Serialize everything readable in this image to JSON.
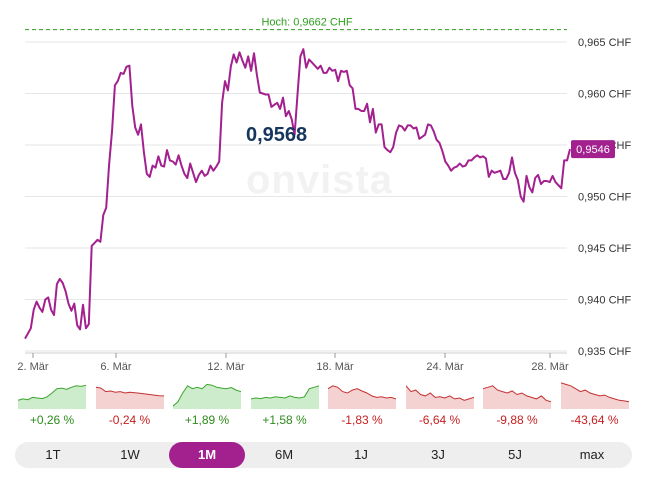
{
  "chart_data": {
    "type": "line",
    "x_tick_labels": [
      "2. Mär",
      "6. Mär",
      "12. Mär",
      "18. Mär",
      "24. Mär",
      "28. Mär"
    ],
    "y_tick_labels": [
      "0,965 CHF",
      "0,960 CHF",
      "0,955 CHF",
      "0,950 CHF",
      "0,945 CHF",
      "0,940 CHF",
      "0,935 CHF"
    ],
    "ylim": [
      0.935,
      0.966
    ],
    "high_label": "Hoch: 0,9662 CHF",
    "high_value": 0.9662,
    "current_label": "0,9546",
    "current_value": 0.9546,
    "hover_value": "0,9568",
    "watermark": "onvista",
    "series": [
      {
        "values": [
          0.9362,
          0.9367,
          0.9372,
          0.939,
          0.9398,
          0.9392,
          0.9388,
          0.94,
          0.9402,
          0.939,
          0.9385,
          0.9415,
          0.942,
          0.9416,
          0.9408,
          0.9396,
          0.9389,
          0.9396,
          0.9375,
          0.9371,
          0.9395,
          0.9372,
          0.9376,
          0.9452,
          0.9455,
          0.9458,
          0.9456,
          0.9482,
          0.9489,
          0.9531,
          0.9563,
          0.9608,
          0.9612,
          0.962,
          0.9619,
          0.9626,
          0.9627,
          0.9588,
          0.9567,
          0.956,
          0.957,
          0.9543,
          0.9522,
          0.9519,
          0.953,
          0.9528,
          0.9539,
          0.953,
          0.9529,
          0.9545,
          0.9535,
          0.9534,
          0.9531,
          0.954,
          0.953,
          0.9522,
          0.9518,
          0.9532,
          0.9523,
          0.9514,
          0.9521,
          0.9525,
          0.952,
          0.9522,
          0.953,
          0.9525,
          0.9529,
          0.9534,
          0.9591,
          0.9612,
          0.9603,
          0.9626,
          0.9638,
          0.963,
          0.964,
          0.9632,
          0.9625,
          0.9636,
          0.9622,
          0.9639,
          0.9618,
          0.9601,
          0.96,
          0.9599,
          0.9599,
          0.9587,
          0.9589,
          0.9591,
          0.9585,
          0.9596,
          0.9578,
          0.9583,
          0.9575,
          0.956,
          0.9599,
          0.9636,
          0.9643,
          0.9625,
          0.9633,
          0.963,
          0.9627,
          0.9624,
          0.9627,
          0.962,
          0.962,
          0.9625,
          0.9622,
          0.9623,
          0.9612,
          0.9622,
          0.9621,
          0.9622,
          0.9608,
          0.9605,
          0.9585,
          0.9585,
          0.9583,
          0.9583,
          0.959,
          0.9572,
          0.9585,
          0.9562,
          0.957,
          0.957,
          0.9548,
          0.9545,
          0.9543,
          0.9548,
          0.9562,
          0.9569,
          0.9568,
          0.9564,
          0.9569,
          0.9569,
          0.9566,
          0.9567,
          0.9556,
          0.9558,
          0.956,
          0.957,
          0.9569,
          0.9563,
          0.9555,
          0.9552,
          0.9544,
          0.9534,
          0.953,
          0.9525,
          0.9528,
          0.9529,
          0.9532,
          0.9529,
          0.953,
          0.9535,
          0.9535,
          0.9538,
          0.954,
          0.9538,
          0.9539,
          0.9537,
          0.9519,
          0.9525,
          0.9523,
          0.9524,
          0.9525,
          0.9517,
          0.9517,
          0.9523,
          0.9538,
          0.9523,
          0.9516,
          0.95,
          0.9495,
          0.952,
          0.9509,
          0.9504,
          0.9518,
          0.9521,
          0.9512,
          0.9515,
          0.9515,
          0.9514,
          0.952,
          0.9514,
          0.9511,
          0.9508,
          0.9535,
          0.9535,
          0.9546
        ]
      }
    ]
  },
  "performance": [
    {
      "label": "+0,26 %",
      "trend": "positive",
      "spark": [
        0.3,
        0.35,
        0.32,
        0.4,
        0.38,
        0.36,
        0.42,
        0.55,
        0.7,
        0.72,
        0.68,
        0.75,
        0.8,
        0.78,
        0.82
      ]
    },
    {
      "label": "-0,24 %",
      "trend": "negative",
      "spark": [
        0.75,
        0.72,
        0.6,
        0.62,
        0.58,
        0.6,
        0.55,
        0.58,
        0.56,
        0.54,
        0.52,
        0.5,
        0.48,
        0.46,
        0.45
      ]
    },
    {
      "label": "+1,89 %",
      "trend": "positive",
      "spark": [
        0.1,
        0.25,
        0.55,
        0.8,
        0.7,
        0.75,
        0.7,
        0.85,
        0.82,
        0.75,
        0.72,
        0.7,
        0.74,
        0.65,
        0.6
      ]
    },
    {
      "label": "+1,58 %",
      "trend": "positive",
      "spark": [
        0.35,
        0.38,
        0.36,
        0.4,
        0.38,
        0.42,
        0.4,
        0.38,
        0.45,
        0.4,
        0.38,
        0.42,
        0.7,
        0.75,
        0.8
      ]
    },
    {
      "label": "-1,83 %",
      "trend": "negative",
      "spark": [
        0.7,
        0.8,
        0.75,
        0.6,
        0.55,
        0.65,
        0.7,
        0.62,
        0.55,
        0.45,
        0.4,
        0.42,
        0.38,
        0.4,
        0.35
      ]
    },
    {
      "label": "-6,64 %",
      "trend": "negative",
      "spark": [
        0.8,
        0.6,
        0.65,
        0.5,
        0.45,
        0.55,
        0.4,
        0.42,
        0.38,
        0.45,
        0.35,
        0.38,
        0.3,
        0.35,
        0.4
      ]
    },
    {
      "label": "-9,88 %",
      "trend": "negative",
      "spark": [
        0.7,
        0.75,
        0.8,
        0.65,
        0.6,
        0.55,
        0.62,
        0.5,
        0.55,
        0.45,
        0.4,
        0.35,
        0.45,
        0.3,
        0.25
      ]
    },
    {
      "label": "-43,64 %",
      "trend": "negative",
      "spark": [
        0.9,
        0.85,
        0.8,
        0.7,
        0.6,
        0.65,
        0.55,
        0.5,
        0.45,
        0.48,
        0.4,
        0.35,
        0.3,
        0.28,
        0.25
      ]
    }
  ],
  "tabs": [
    "1T",
    "1W",
    "1M",
    "6M",
    "1J",
    "3J",
    "5J",
    "max"
  ],
  "active_tab": "1M",
  "colors": {
    "line": "#a3208f",
    "high_line": "#2e9e1f",
    "grid": "#e6e6e6",
    "positive_fill": "#cdeccc",
    "positive_stroke": "#3aa62c",
    "negative_fill": "#f4d2d2",
    "negative_stroke": "#c53030"
  }
}
